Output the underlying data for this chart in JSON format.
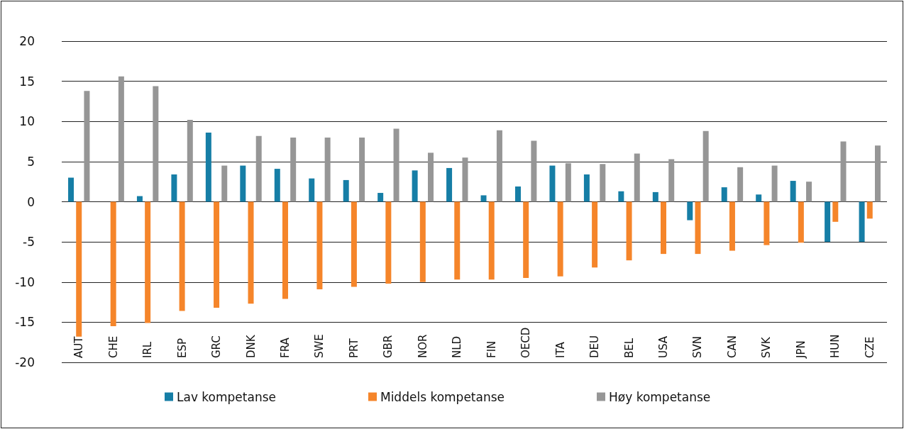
{
  "chart_data": {
    "type": "bar",
    "categories": [
      "AUT",
      "CHE",
      "IRL",
      "ESP",
      "GRC",
      "DNK",
      "FRA",
      "SWE",
      "PRT",
      "GBR",
      "NOR",
      "NLD",
      "FIN",
      "OECD",
      "ITA",
      "DEU",
      "BEL",
      "USA",
      "SVN",
      "CAN",
      "SVK",
      "JPN",
      "HUN",
      "CZE"
    ],
    "series": [
      {
        "name": "Lav kompetanse",
        "color": "#167ea6",
        "values": [
          3.0,
          0,
          0.7,
          3.4,
          8.6,
          4.5,
          4.1,
          2.9,
          2.7,
          1.1,
          3.9,
          4.2,
          0.8,
          1.9,
          4.5,
          3.4,
          1.3,
          1.2,
          -2.3,
          1.8,
          0.9,
          2.6,
          -5.0,
          -5.0
        ]
      },
      {
        "name": "Middels kompetanse",
        "color": "#f5852a",
        "values": [
          -16.8,
          -15.5,
          -15.1,
          -13.6,
          -13.2,
          -12.7,
          -12.1,
          -10.9,
          -10.6,
          -10.2,
          -10.0,
          -9.7,
          -9.7,
          -9.5,
          -9.3,
          -8.2,
          -7.3,
          -6.5,
          -6.5,
          -6.1,
          -5.4,
          -5.1,
          -2.5,
          -2.1
        ]
      },
      {
        "name": "Høy kompetanse",
        "color": "#969696",
        "values": [
          13.8,
          15.6,
          14.4,
          10.2,
          4.5,
          8.2,
          8.0,
          8.0,
          8.0,
          9.1,
          6.1,
          5.5,
          8.9,
          7.6,
          4.8,
          4.7,
          6.0,
          5.3,
          8.8,
          4.3,
          4.5,
          2.5,
          7.5,
          7.0
        ]
      }
    ],
    "ylim": [
      -20,
      20
    ],
    "yticks": [
      -20,
      -15,
      -10,
      -5,
      0,
      5,
      10,
      15,
      20
    ],
    "grid": "y",
    "legend": "bottom"
  }
}
